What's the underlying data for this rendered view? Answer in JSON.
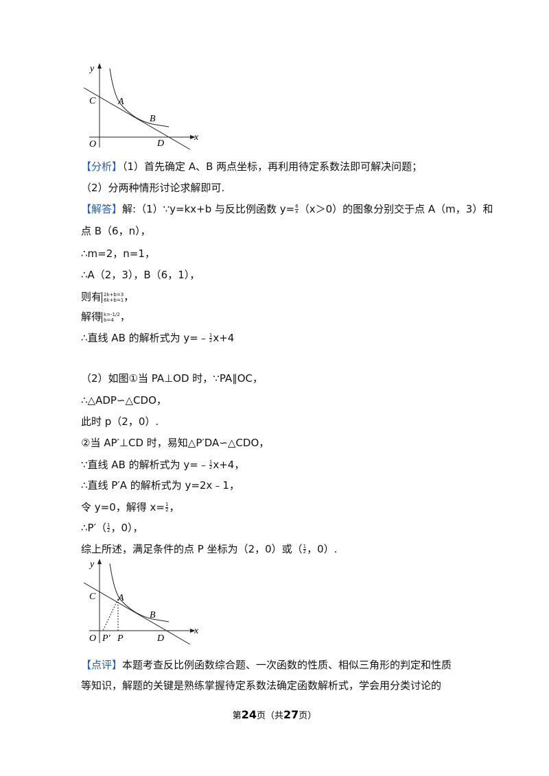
{
  "figure1": {
    "labels": {
      "y": "y",
      "x": "x",
      "C": "C",
      "A": "A",
      "B": "B",
      "O": "O",
      "D": "D"
    }
  },
  "analysis": [
    [
      {
        "tag": "【分析】"
      },
      "（1）首先确定 A、B 两点坐标，再利用待定系数法即可解决问题；"
    ],
    [
      "（2）分两种情形讨论求解即可."
    ]
  ],
  "solution": [
    [
      {
        "tag": "【解答】"
      },
      "解:（1）∵y=kx+b 与反比例函数 y=",
      {
        "num": "6",
        "den": "x"
      },
      "（x＞0）的图象分别交于点 A（m，3）和"
    ],
    [
      "点 B（6，n），"
    ],
    [
      "∴m=2，n=1，"
    ],
    [
      "∴A（2，3），B（6，1），"
    ],
    [
      "则有",
      {
        "system": [
          "2k+b=3",
          "6k+b=1"
        ]
      },
      "，"
    ],
    [
      "解得",
      {
        "system": [
          "k=-1/2",
          "b=4"
        ]
      },
      "，"
    ],
    [
      "∴直线 AB 的解析式为 y=﹣",
      {
        "num": "1",
        "den": "2"
      },
      "x+4"
    ],
    [
      "（2）如图①当 PA⊥OD 时，∵PA∥OC，"
    ],
    [
      "∴△ADP∽△CDO，"
    ],
    [
      "此时 p（2，0）."
    ],
    [
      "②当 AP′⊥CD 时，易知△P′DA∽△CDO，"
    ],
    [
      "∵直线 AB 的解析式为 y=﹣",
      {
        "num": "1",
        "den": "2"
      },
      "x+4，"
    ],
    [
      "∴直线 P′A 的解析式为 y=2x﹣1，"
    ],
    [
      "令 y=0，解得 x=",
      {
        "num": "1",
        "den": "2"
      },
      "，"
    ],
    [
      "∴P′（",
      {
        "num": "1",
        "den": "2"
      },
      "，0），"
    ],
    [
      "综上所述，满足条件的点 P 坐标为（2，0）或（",
      {
        "num": "1",
        "den": "2"
      },
      "，0）."
    ]
  ],
  "figure2": {
    "labels": {
      "y": "y",
      "x": "x",
      "C": "C",
      "A": "A",
      "B": "B",
      "O": "O",
      "P1": "P′",
      "P": "P",
      "D": "D"
    }
  },
  "comment": [
    [
      {
        "tag": "【点评】"
      },
      "本题考查反比例函数综合题、一次函数的性质、相似三角形的判定和性质"
    ],
    [
      "等知识，解题的关键是熟练掌握待定系数法确定函数解析式，学会用分类讨论的"
    ]
  ],
  "footer": [
    "第",
    {
      "bold": "24"
    },
    "页（共",
    {
      "bold": "27"
    },
    "页）"
  ]
}
